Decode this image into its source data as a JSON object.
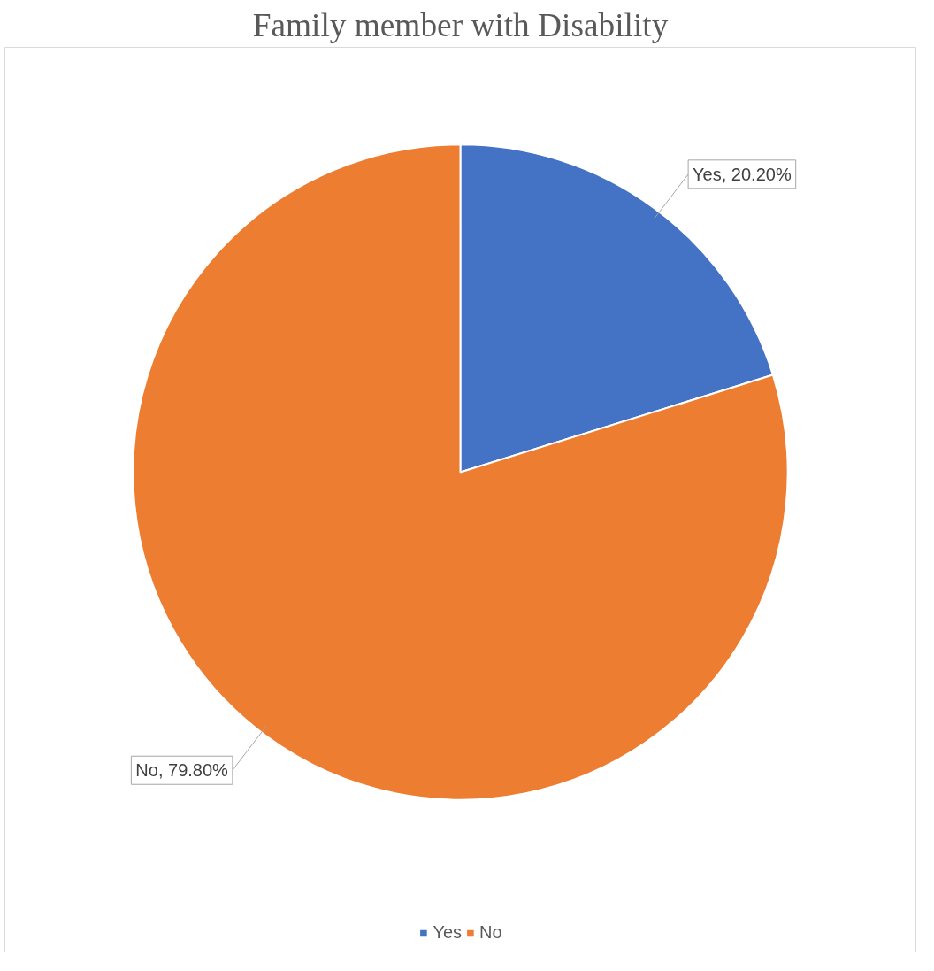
{
  "chart_data": {
    "type": "pie",
    "title": "Family member with Disability",
    "categories": [
      "Yes",
      "No"
    ],
    "values": [
      20.2,
      79.8
    ],
    "colors": [
      "#4472c4",
      "#ed7d31"
    ],
    "value_labels": [
      "Yes, 20.20%",
      "No, 79.80%"
    ],
    "legend": "bottom"
  }
}
